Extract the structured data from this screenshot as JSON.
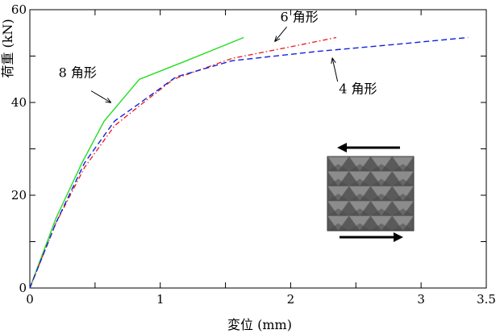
{
  "chart_data": {
    "type": "line",
    "title": "",
    "xlabel": "変位 (mm)",
    "ylabel": "荷重 (kN)",
    "xlim": [
      0,
      3.5
    ],
    "ylim": [
      0,
      60
    ],
    "x_ticks": [
      0,
      0.5,
      1,
      1.5,
      2,
      2.5,
      3,
      3.5
    ],
    "x_tick_labels": [
      "0",
      "",
      "1",
      "",
      "2",
      "",
      "3",
      "3.5"
    ],
    "y_ticks": [
      0,
      10,
      20,
      30,
      40,
      50,
      60
    ],
    "y_tick_labels": [
      "0",
      "",
      "20",
      "",
      "40",
      "",
      "60"
    ],
    "grid": false,
    "series": [
      {
        "name": "8 角形",
        "color": "#22dd22",
        "dash": "solid",
        "x": [
          0,
          0.2,
          0.4,
          0.57,
          0.84,
          1.2,
          1.64
        ],
        "y": [
          0,
          15,
          27,
          36,
          45,
          49,
          54
        ]
      },
      {
        "name": "6 角形",
        "color": "#ee2222",
        "dash": "dashdot",
        "x": [
          0,
          0.2,
          0.42,
          0.65,
          0.85,
          1.1,
          1.55,
          2.0,
          2.35
        ],
        "y": [
          0,
          14,
          26,
          35,
          39.5,
          45,
          49.5,
          52,
          54
        ]
      },
      {
        "name": "4 角形",
        "color": "#1122dd",
        "dash": "dashed",
        "x": [
          0,
          0.2,
          0.42,
          0.65,
          0.85,
          1.12,
          1.55,
          2.2,
          2.8,
          3.36
        ],
        "y": [
          0,
          14,
          27,
          36,
          40,
          45.5,
          49,
          51,
          52.5,
          54
        ]
      }
    ],
    "annotations": [
      {
        "text": "8 角形",
        "series": 0,
        "text_at": [
          0.22,
          45.5
        ],
        "arrow_from": [
          0.47,
          42.5
        ],
        "arrow_to": [
          0.62,
          40
        ]
      },
      {
        "text": "6 角形",
        "series": 1,
        "text_at": [
          1.92,
          57.5
        ],
        "arrow_from": [
          1.97,
          56.3
        ],
        "arrow_to": [
          1.88,
          53.2
        ]
      },
      {
        "text": "4 角形",
        "series": 2,
        "text_at": [
          2.37,
          42
        ],
        "arrow_from": [
          2.36,
          44.5
        ],
        "arrow_to": [
          2.32,
          49.5
        ]
      }
    ]
  },
  "inset": {
    "description_icon": "hexagonal-column-specimen-icon",
    "top_arrow": "left",
    "bottom_arrow": "right"
  }
}
